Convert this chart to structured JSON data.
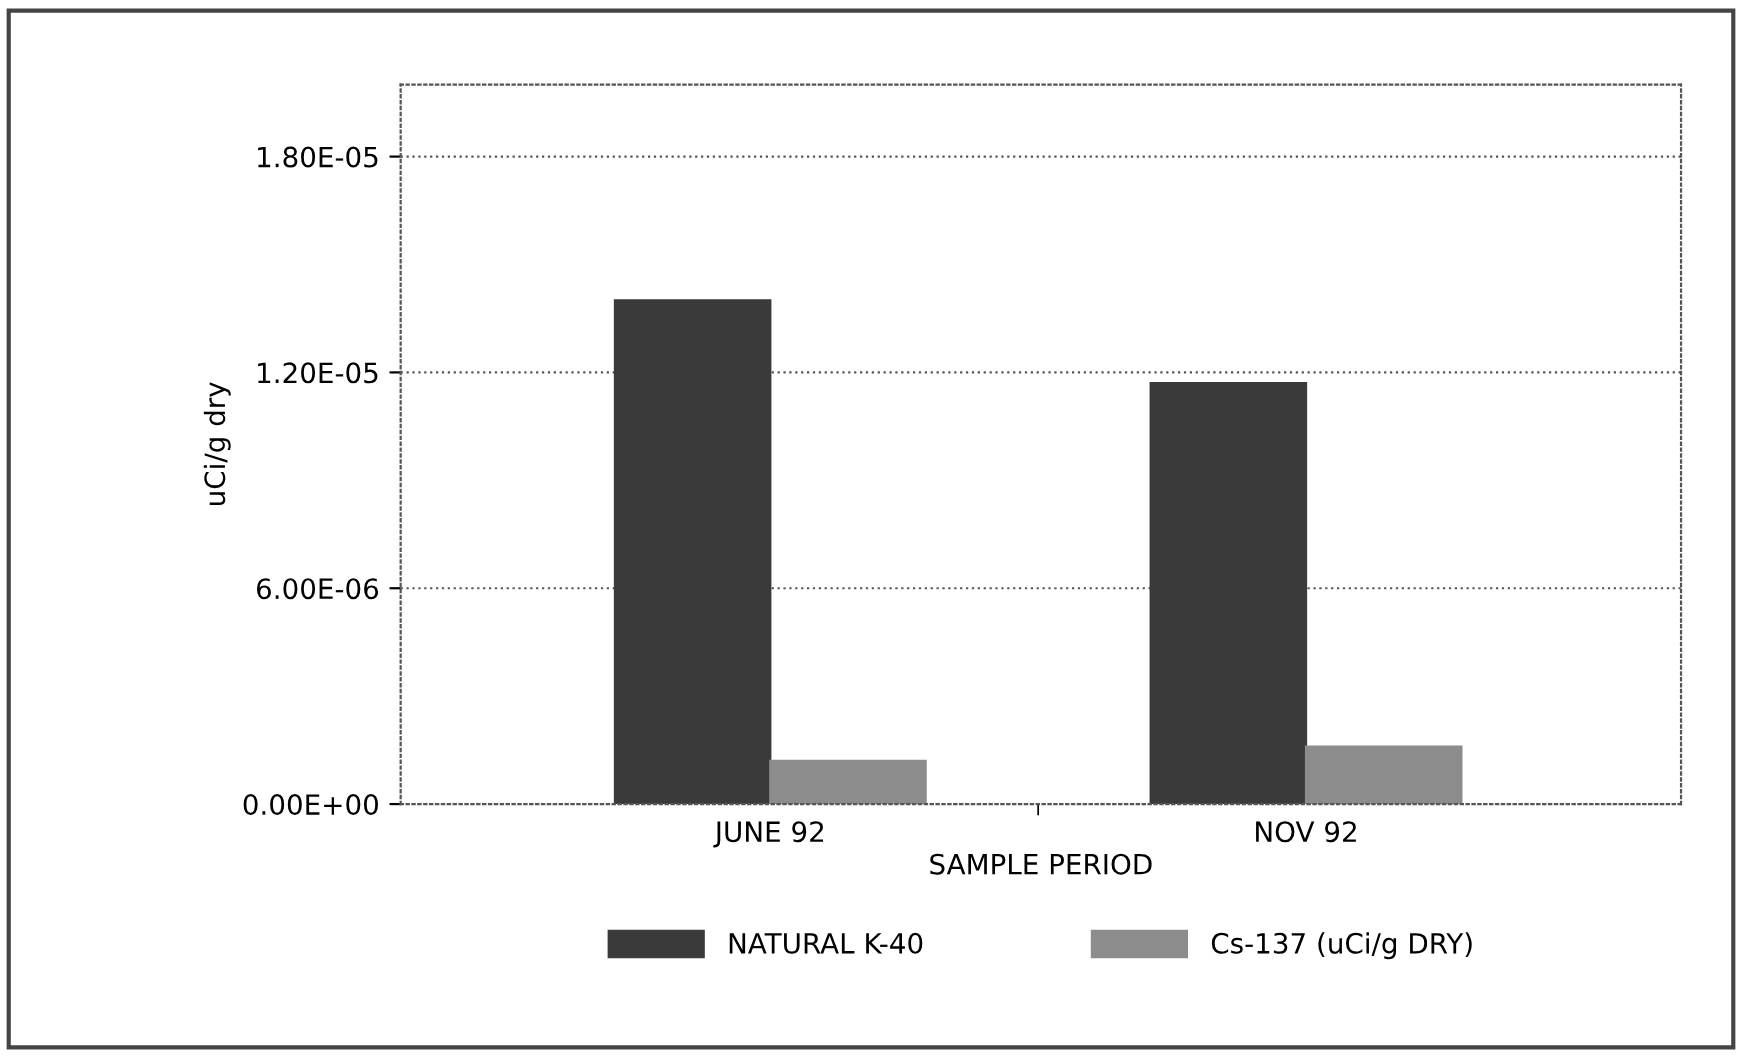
{
  "chart_data": {
    "type": "bar",
    "xlabel": "SAMPLE PERIOD",
    "ylabel": "uCi/g dry",
    "categories": [
      "JUNE 92",
      "NOV 92"
    ],
    "series": [
      {
        "name": "NATURAL K-40",
        "color": "#3a3a3a",
        "values": [
          1.4e-05,
          1.17e-05
        ]
      },
      {
        "name": "Cs-137 (uCi/g DRY)",
        "color": "#8c8c8c",
        "values": [
          1.2e-06,
          1.6e-06
        ]
      }
    ],
    "ylim": [
      0,
      2e-05
    ],
    "yticks": [
      {
        "value": 0,
        "label": "0.00E+00"
      },
      {
        "value": 6e-06,
        "label": "6.00E-06"
      },
      {
        "value": 1.2e-05,
        "label": "1.20E-05"
      },
      {
        "value": 1.8e-05,
        "label": "1.80E-05"
      }
    ],
    "grid": "y",
    "legend": "bottom"
  }
}
